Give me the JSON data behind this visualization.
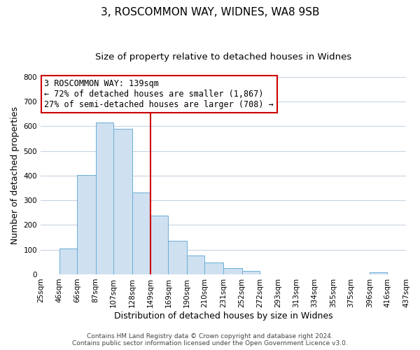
{
  "title_line1": "3, ROSCOMMON WAY, WIDNES, WA8 9SB",
  "title_line2": "Size of property relative to detached houses in Widnes",
  "xlabel": "Distribution of detached houses by size in Widnes",
  "ylabel": "Number of detached properties",
  "bar_color": "#cfe0f0",
  "bar_edge_color": "#6badd6",
  "background_color": "#ffffff",
  "grid_color": "#c8d4e0",
  "bins": [
    25,
    46,
    66,
    87,
    107,
    128,
    149,
    169,
    190,
    210,
    231,
    252,
    272,
    293,
    313,
    334,
    355,
    375,
    396,
    416,
    437
  ],
  "counts": [
    0,
    106,
    403,
    615,
    590,
    333,
    237,
    136,
    76,
    49,
    25,
    15,
    0,
    0,
    0,
    0,
    0,
    0,
    7,
    0
  ],
  "vline_x": 149,
  "vline_color": "#cc0000",
  "ylim": [
    0,
    800
  ],
  "yticks": [
    0,
    100,
    200,
    300,
    400,
    500,
    600,
    700,
    800
  ],
  "annotation_text_line1": "3 ROSCOMMON WAY: 139sqm",
  "annotation_text_line2": "← 72% of detached houses are smaller (1,867)",
  "annotation_text_line3": "27% of semi-detached houses are larger (708) →",
  "footer_line1": "Contains HM Land Registry data © Crown copyright and database right 2024.",
  "footer_line2": "Contains public sector information licensed under the Open Government Licence v3.0.",
  "title_fontsize": 11,
  "subtitle_fontsize": 9.5,
  "axis_label_fontsize": 9,
  "tick_fontsize": 7.5,
  "annotation_fontsize": 8.5,
  "footer_fontsize": 6.5
}
